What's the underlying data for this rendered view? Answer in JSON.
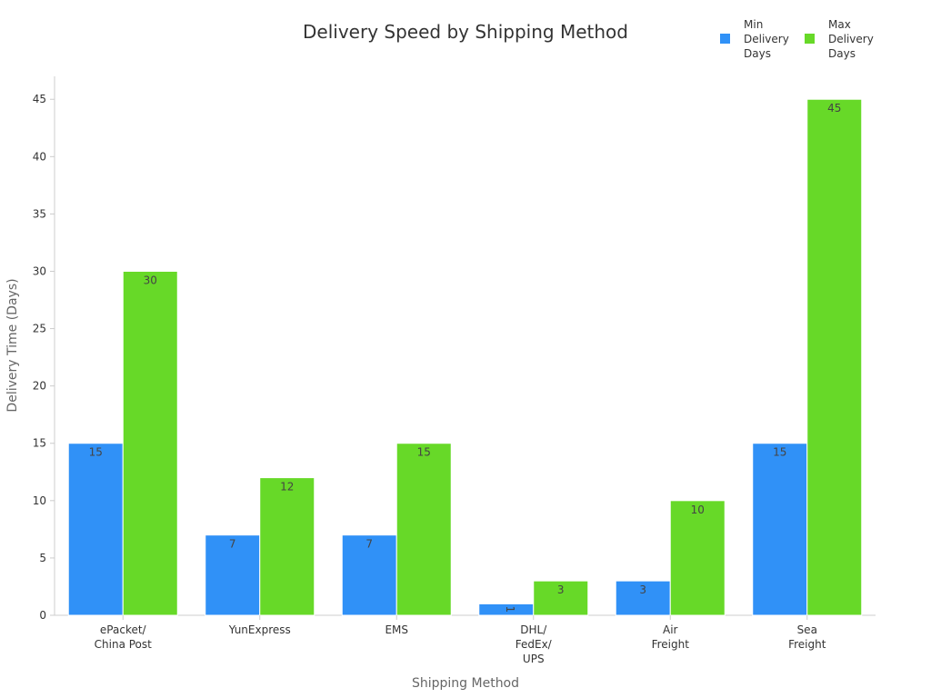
{
  "chart_data": {
    "type": "bar",
    "title": "Delivery Speed by Shipping Method",
    "xlabel": "Shipping Method",
    "ylabel": "Delivery Time (Days)",
    "ylim": [
      0,
      47
    ],
    "yticks": [
      0,
      5,
      10,
      15,
      20,
      25,
      30,
      35,
      40,
      45
    ],
    "grid": false,
    "legend_position": "top-right",
    "categories": [
      [
        "ePacket/",
        "China Post"
      ],
      [
        "YunExpress"
      ],
      [
        "EMS"
      ],
      [
        "DHL/",
        "FedEx/",
        "UPS"
      ],
      [
        "Air",
        "Freight"
      ],
      [
        "Sea",
        "Freight"
      ]
    ],
    "series": [
      {
        "name": [
          "Min",
          "Delivery",
          "Days"
        ],
        "color": "#3091f7",
        "values": [
          15,
          7,
          7,
          1,
          3,
          15
        ]
      },
      {
        "name": [
          "Max",
          "Delivery",
          "Days"
        ],
        "color": "#67d928",
        "values": [
          30,
          12,
          15,
          3,
          10,
          45
        ]
      }
    ]
  }
}
